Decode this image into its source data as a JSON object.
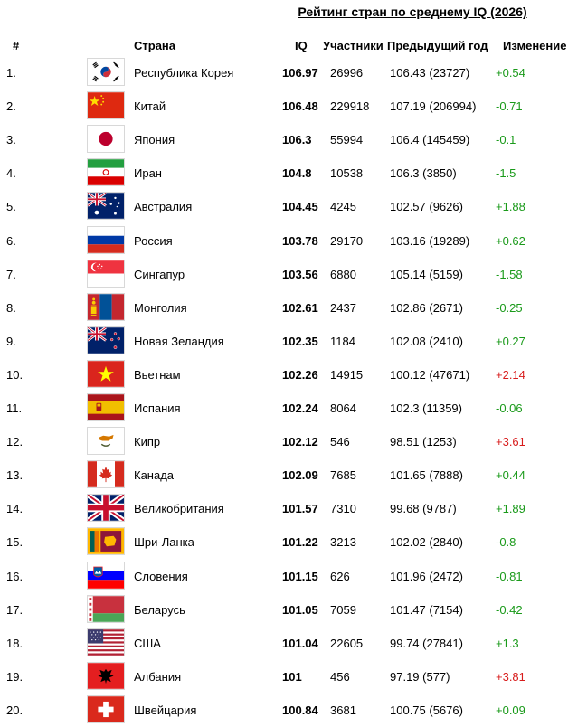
{
  "title": "Рейтинг стран по среднему IQ (2026)",
  "headers": {
    "rank": "#",
    "country": "Страна",
    "iq": "IQ",
    "participants": "Участники",
    "previous": "Предыдущий год",
    "change": "Изменение"
  },
  "rows": [
    {
      "rank": "1.",
      "flag": "south-korea-flag",
      "country": "Республика Корея",
      "iq": "106.97",
      "participants": "26996",
      "previous": "106.43 (23727)",
      "change": "+0.54"
    },
    {
      "rank": "2.",
      "flag": "china-flag",
      "country": "Китай",
      "iq": "106.48",
      "participants": "229918",
      "previous": "107.19 (206994)",
      "change": "-0.71"
    },
    {
      "rank": "3.",
      "flag": "japan-flag",
      "country": "Япония",
      "iq": "106.3",
      "participants": "55994",
      "previous": "106.4 (145459)",
      "change": "-0.1"
    },
    {
      "rank": "4.",
      "flag": "iran-flag",
      "country": "Иран",
      "iq": "104.8",
      "participants": "10538",
      "previous": "106.3 (3850)",
      "change": "-1.5"
    },
    {
      "rank": "5.",
      "flag": "australia-flag",
      "country": "Австралия",
      "iq": "104.45",
      "participants": "4245",
      "previous": "102.57 (9626)",
      "change": "+1.88"
    },
    {
      "rank": "6.",
      "flag": "russia-flag",
      "country": "Россия",
      "iq": "103.78",
      "participants": "29170",
      "previous": "103.16 (19289)",
      "change": "+0.62"
    },
    {
      "rank": "7.",
      "flag": "singapore-flag",
      "country": "Сингапур",
      "iq": "103.56",
      "participants": "6880",
      "previous": "105.14 (5159)",
      "change": "-1.58"
    },
    {
      "rank": "8.",
      "flag": "mongolia-flag",
      "country": "Монголия",
      "iq": "102.61",
      "participants": "2437",
      "previous": "102.86 (2671)",
      "change": "-0.25"
    },
    {
      "rank": "9.",
      "flag": "new-zealand-flag",
      "country": "Новая Зеландия",
      "iq": "102.35",
      "participants": "1184",
      "previous": "102.08 (2410)",
      "change": "+0.27"
    },
    {
      "rank": "10.",
      "flag": "vietnam-flag",
      "country": "Вьетнам",
      "iq": "102.26",
      "participants": "14915",
      "previous": "100.12 (47671)",
      "change": "+2.14"
    },
    {
      "rank": "11.",
      "flag": "spain-flag",
      "country": "Испания",
      "iq": "102.24",
      "participants": "8064",
      "previous": "102.3 (11359)",
      "change": "-0.06"
    },
    {
      "rank": "12.",
      "flag": "cyprus-flag",
      "country": "Кипр",
      "iq": "102.12",
      "participants": "546",
      "previous": "98.51 (1253)",
      "change": "+3.61"
    },
    {
      "rank": "13.",
      "flag": "canada-flag",
      "country": "Канада",
      "iq": "102.09",
      "participants": "7685",
      "previous": "101.65 (7888)",
      "change": "+0.44"
    },
    {
      "rank": "14.",
      "flag": "uk-flag",
      "country": "Великобритания",
      "iq": "101.57",
      "participants": "7310",
      "previous": "99.68 (9787)",
      "change": "+1.89"
    },
    {
      "rank": "15.",
      "flag": "sri-lanka-flag",
      "country": "Шри-Ланка",
      "iq": "101.22",
      "participants": "3213",
      "previous": "102.02 (2840)",
      "change": "-0.8"
    },
    {
      "rank": "16.",
      "flag": "slovenia-flag",
      "country": "Словения",
      "iq": "101.15",
      "participants": "626",
      "previous": "101.96 (2472)",
      "change": "-0.81"
    },
    {
      "rank": "17.",
      "flag": "belarus-flag",
      "country": "Беларусь",
      "iq": "101.05",
      "participants": "7059",
      "previous": "101.47 (7154)",
      "change": "-0.42"
    },
    {
      "rank": "18.",
      "flag": "usa-flag",
      "country": "США",
      "iq": "101.04",
      "participants": "22605",
      "previous": "99.74 (27841)",
      "change": "+1.3"
    },
    {
      "rank": "19.",
      "flag": "albania-flag",
      "country": "Албания",
      "iq": "101",
      "participants": "456",
      "previous": "97.19 (577)",
      "change": "+3.81"
    },
    {
      "rank": "20.",
      "flag": "switzerland-flag",
      "country": "Швейцария",
      "iq": "100.84",
      "participants": "3681",
      "previous": "100.75 (5676)",
      "change": "+0.09"
    }
  ],
  "colors": {
    "change_normal": "#1a9a1a",
    "change_large_gain": "#d81c1c"
  }
}
